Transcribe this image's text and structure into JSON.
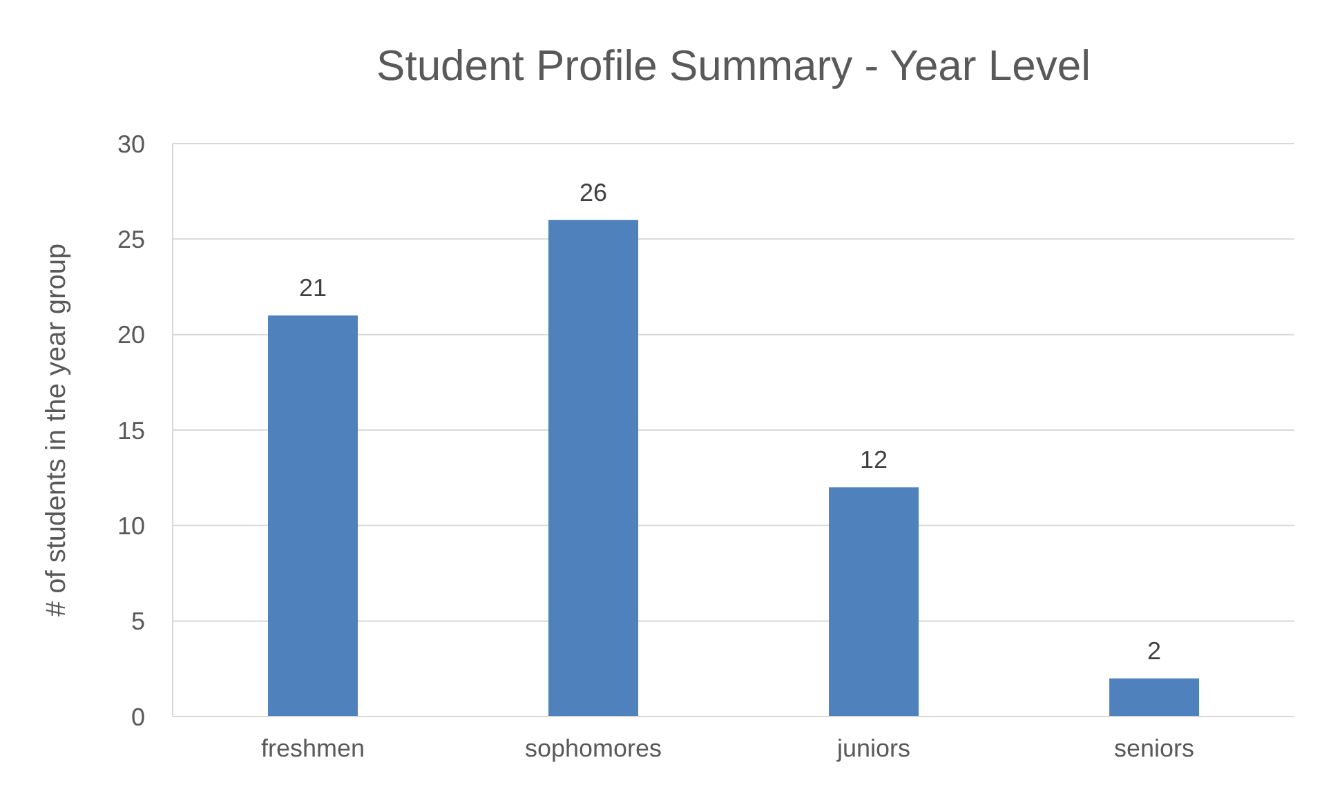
{
  "chart_data": {
    "type": "bar",
    "title": "Student Profile Summary - Year Level",
    "ylabel": "# of students in the year group",
    "categories": [
      "freshmen",
      "sophomores",
      "juniors",
      "seniors"
    ],
    "values": [
      21,
      26,
      12,
      2
    ],
    "color": "#4f81bd",
    "ylim": [
      0,
      30
    ],
    "yticks": [
      0,
      5,
      10,
      15,
      20,
      25,
      30
    ],
    "grid": "y",
    "data_labels": true
  }
}
